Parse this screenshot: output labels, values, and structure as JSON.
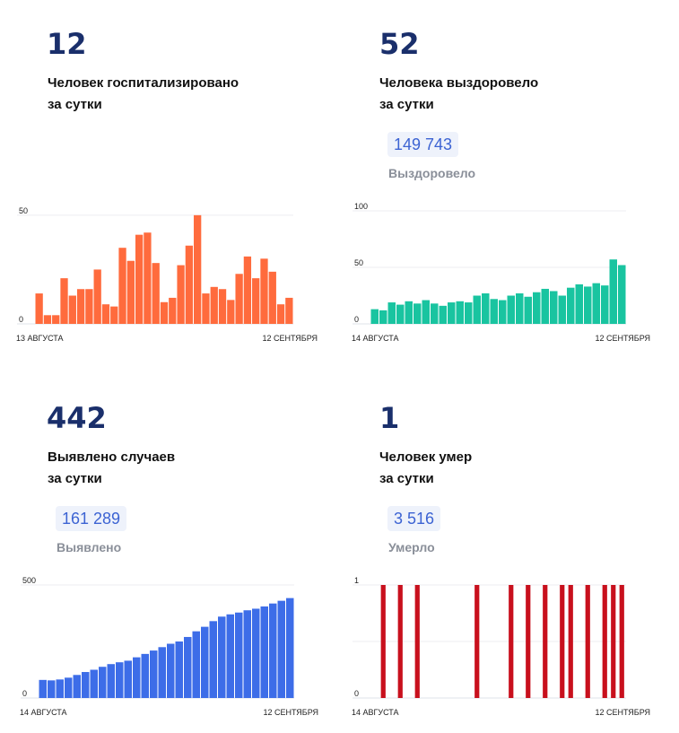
{
  "panels": [
    {
      "id": "hospitalized",
      "dot_color": "#3d6de8",
      "value": "12",
      "caption_line1": "Человек госпитализировано",
      "caption_line2": "за сутки",
      "total": "",
      "total_label": ""
    },
    {
      "id": "recovered",
      "dot_color": "#19c4a0",
      "value": "52",
      "caption_line1": "Человека выздоровело",
      "caption_line2": "за сутки",
      "total": "149 743",
      "total_label": "Выздоровело"
    },
    {
      "id": "cases",
      "dot_color": "#3d6de8",
      "value": "442",
      "caption_line1": "Выявлено случаев",
      "caption_line2": "за сутки",
      "total": "161 289",
      "total_label": "Выявлено"
    },
    {
      "id": "deaths",
      "dot_color": "#c8101d",
      "value": "1",
      "caption_line1": "Человек умер",
      "caption_line2": "за сутки",
      "total": "3 516",
      "total_label": "Умерло"
    }
  ],
  "chart_data": [
    {
      "type": "bar",
      "color": "#ff6b3d",
      "x_start_label": "13 АВГУСТА",
      "x_end_label": "12 СЕНТЯБРЯ",
      "yticks": [
        0,
        50
      ],
      "ylim": [
        0,
        52
      ],
      "values": [
        14,
        4,
        4,
        21,
        13,
        16,
        16,
        25,
        9,
        8,
        35,
        29,
        41,
        42,
        28,
        10,
        12,
        27,
        36,
        50,
        14,
        17,
        16,
        11,
        23,
        31,
        21,
        30,
        24,
        9,
        12
      ]
    },
    {
      "type": "bar",
      "color": "#19c4a0",
      "x_start_label": "14 АВГУСТА",
      "x_end_label": "12 СЕНТЯБРЯ",
      "yticks": [
        0,
        50,
        100
      ],
      "ylim": [
        0,
        100
      ],
      "values": [
        13,
        12,
        19,
        17,
        20,
        18,
        21,
        18,
        16,
        19,
        20,
        19,
        25,
        27,
        22,
        21,
        25,
        27,
        24,
        28,
        31,
        29,
        25,
        32,
        35,
        33,
        36,
        34,
        57,
        52
      ]
    },
    {
      "type": "bar",
      "color": "#3d6de8",
      "x_start_label": "14 АВГУСТА",
      "x_end_label": "12 СЕНТЯБРЯ",
      "yticks": [
        0,
        500
      ],
      "ylim": [
        0,
        500
      ],
      "values": [
        80,
        78,
        82,
        90,
        102,
        115,
        125,
        138,
        150,
        158,
        165,
        180,
        195,
        210,
        225,
        240,
        250,
        270,
        295,
        315,
        340,
        360,
        370,
        378,
        388,
        395,
        405,
        418,
        430,
        442
      ]
    },
    {
      "type": "bar",
      "color": "#c8101d",
      "x_start_label": "14 АВГУСТА",
      "x_end_label": "12 СЕНТЯБРЯ",
      "yticks": [
        0,
        1
      ],
      "ylim": [
        0,
        1
      ],
      "values": [
        0,
        1,
        0,
        1,
        0,
        1,
        0,
        0,
        0,
        0,
        0,
        0,
        1,
        0,
        0,
        0,
        1,
        0,
        1,
        0,
        1,
        0,
        1,
        1,
        0,
        1,
        0,
        1,
        1,
        1
      ]
    }
  ]
}
